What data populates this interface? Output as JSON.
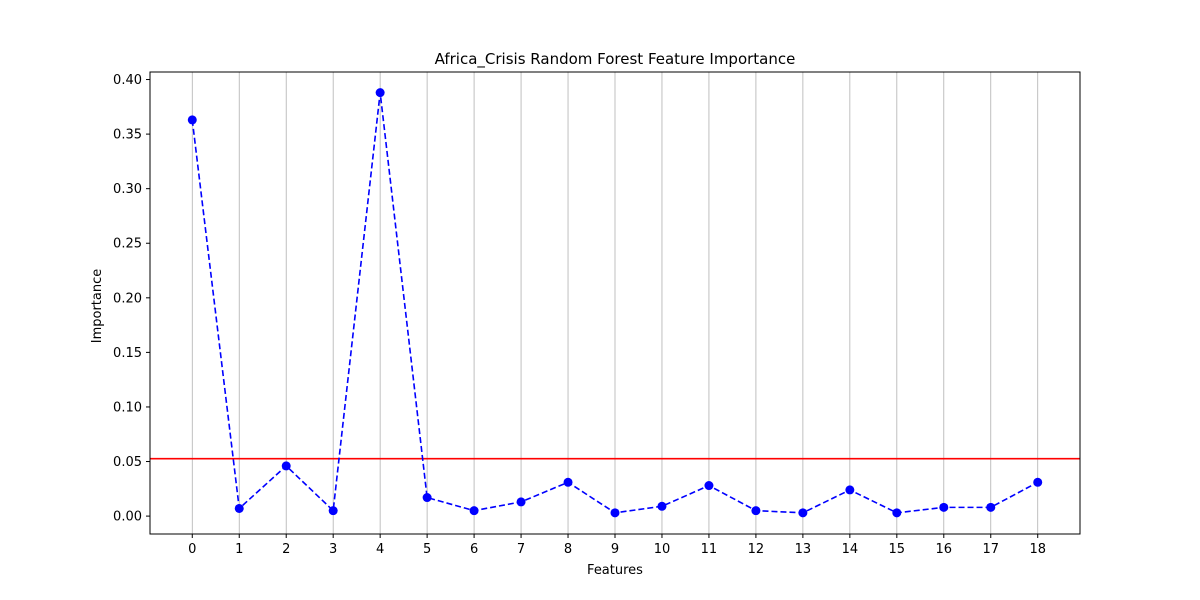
{
  "chart_data": {
    "type": "line",
    "title": "Africa_Crisis Random Forest Feature Importance",
    "xlabel": "Features",
    "ylabel": "Importance",
    "x": [
      0,
      1,
      2,
      3,
      4,
      5,
      6,
      7,
      8,
      9,
      10,
      11,
      12,
      13,
      14,
      15,
      16,
      17,
      18
    ],
    "series": [
      {
        "values": [
          0.363,
          0.007,
          0.046,
          0.005,
          0.388,
          0.017,
          0.005,
          0.013,
          0.031,
          0.003,
          0.009,
          0.028,
          0.005,
          0.003,
          0.024,
          0.003,
          0.008,
          0.008,
          0.031
        ],
        "color": "#0000ff",
        "line_style": "dashed",
        "marker": "circle"
      }
    ],
    "threshold": {
      "value": 0.0526,
      "color": "#ff0000"
    },
    "xlim": [
      -0.9,
      18.9
    ],
    "ylim": [
      -0.0164,
      0.4069
    ],
    "yticks": [
      "0.00",
      "0.05",
      "0.10",
      "0.15",
      "0.20",
      "0.25",
      "0.30",
      "0.35",
      "0.40"
    ],
    "xticks": [
      "0",
      "1",
      "2",
      "3",
      "4",
      "5",
      "6",
      "7",
      "8",
      "9",
      "10",
      "11",
      "12",
      "13",
      "14",
      "15",
      "16",
      "17",
      "18"
    ],
    "grid": "vertical"
  }
}
